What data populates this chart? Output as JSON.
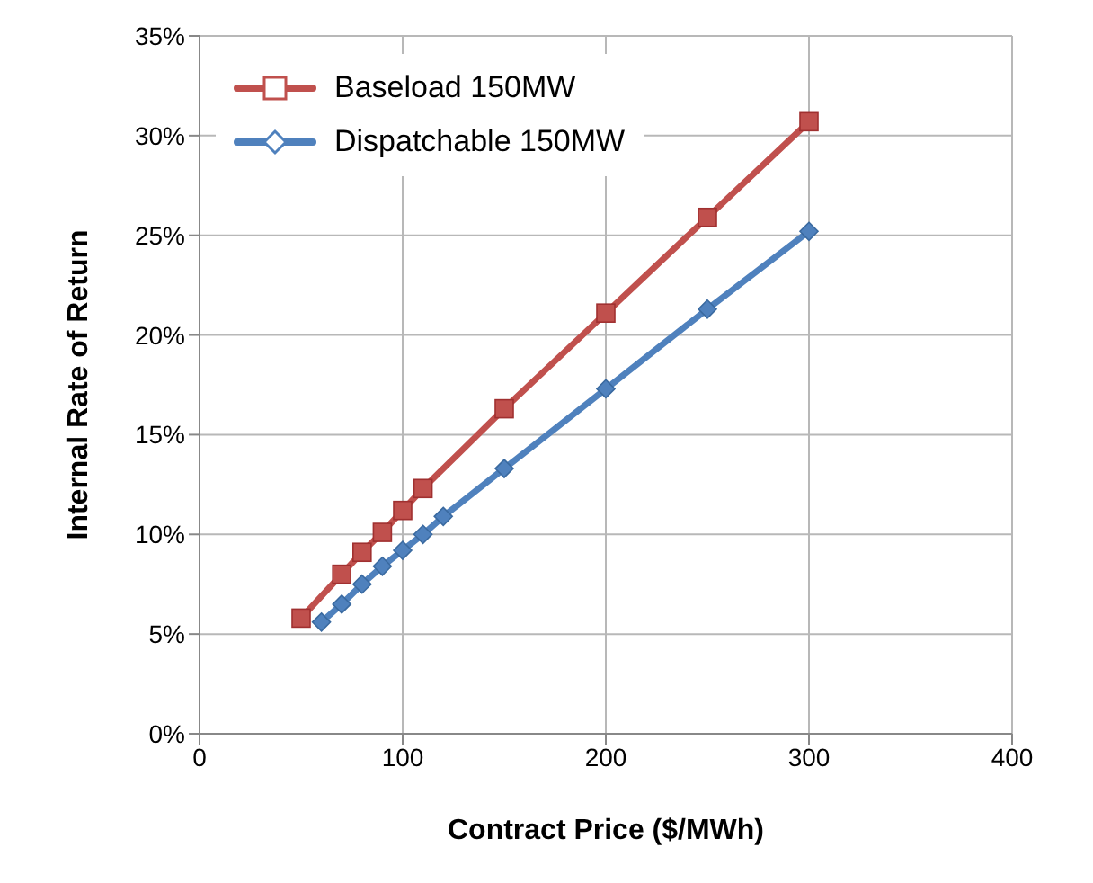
{
  "chart_data": {
    "type": "line",
    "xlabel": "Contract Price ($/MWh)",
    "ylabel": "Internal Rate of Return",
    "series": [
      {
        "name": "Baseload 150MW",
        "color": "#c0504d",
        "marker": "square",
        "x": [
          50,
          70,
          80,
          90,
          100,
          110,
          150,
          200,
          250,
          300
        ],
        "values": [
          5.8,
          8.0,
          9.1,
          10.1,
          11.2,
          12.3,
          16.3,
          21.1,
          25.9,
          30.7
        ]
      },
      {
        "name": "Dispatchable 150MW",
        "color": "#4f81bd",
        "marker": "diamond",
        "x": [
          60,
          70,
          80,
          90,
          100,
          110,
          120,
          150,
          200,
          250,
          300
        ],
        "values": [
          5.6,
          6.5,
          7.5,
          8.4,
          9.2,
          10.0,
          10.9,
          13.3,
          17.3,
          21.3,
          25.2
        ]
      }
    ],
    "xlim": [
      0,
      400
    ],
    "xticks": [
      0,
      100,
      200,
      300,
      400
    ],
    "ylim": [
      0,
      35
    ],
    "yticks": [
      {
        "value": 0,
        "label": "0%"
      },
      {
        "value": 5,
        "label": "5%"
      },
      {
        "value": 10,
        "label": "10%"
      },
      {
        "value": 15,
        "label": "15%"
      },
      {
        "value": 20,
        "label": "20%"
      },
      {
        "value": 25,
        "label": "25%"
      },
      {
        "value": 30,
        "label": "30%"
      },
      {
        "value": 35,
        "label": "35%"
      }
    ],
    "grid": true,
    "legend": "top left",
    "line_style": "solid"
  }
}
